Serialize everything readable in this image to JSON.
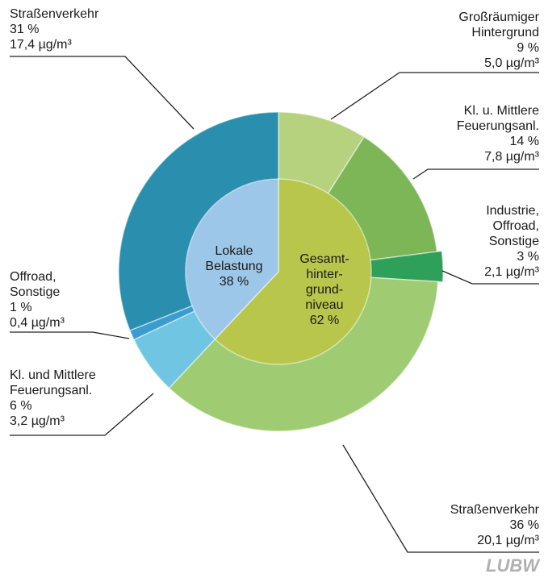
{
  "chart_data": {
    "type": "pie",
    "logo": "LUBW",
    "rings": [
      {
        "labels": [
          [
            "Gesamt-",
            "hinter-",
            "grund-",
            "niveau"
          ],
          [
            "Lokale",
            "Belastung"
          ]
        ],
        "values": [
          62,
          38
        ],
        "value_labels": [
          "62 %",
          "38 %"
        ],
        "colors": [
          "#b9c64c",
          "#9dc7e8"
        ]
      },
      {
        "labels": [
          [
            "Großräumiger",
            "Hintergrund"
          ],
          [
            "Kl. u. Mittlere",
            "Feuerungsanl."
          ],
          [
            "Industrie,",
            "Offroad,",
            "Sonstige"
          ],
          [
            "Straßenverkehr"
          ],
          [
            "Kl. und Mittlere",
            "Feuerungsanl."
          ],
          [
            "Offroad,",
            "Sonstige"
          ],
          [
            "Straßenverkehr"
          ]
        ],
        "values": [
          9,
          14,
          3,
          36,
          6,
          1,
          31
        ],
        "value_labels": [
          "9 %",
          "14 %",
          "3 %",
          "36 %",
          "6 %",
          "1 %",
          "31 %"
        ],
        "concentrations": [
          5.0,
          7.8,
          2.1,
          20.1,
          3.2,
          0.4,
          17.4
        ],
        "concentration_labels": [
          "5,0 µg/m³",
          "7,8 µg/m³",
          "2,1 µg/m³",
          "20,1 µg/m³",
          "3,2 µg/m³",
          "0,4 µg/m³",
          "17,4 µg/m³"
        ],
        "colors": [
          "#b6d27e",
          "#7db656",
          "#2fa05a",
          "#9fcc72",
          "#70c6e2",
          "#3a9ccf",
          "#2a8fae"
        ]
      }
    ]
  }
}
